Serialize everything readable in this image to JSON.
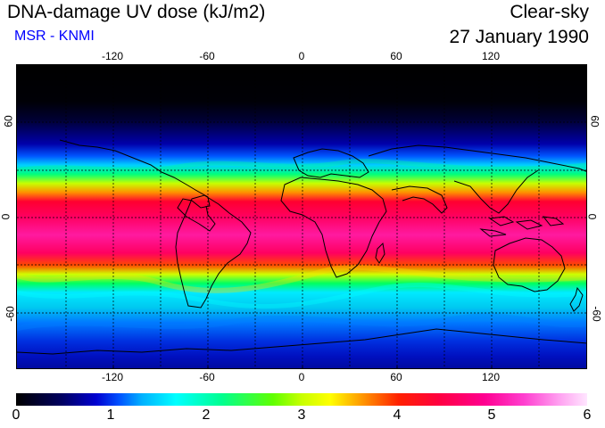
{
  "header": {
    "title": "DNA-damage UV dose (kJ/m2)",
    "subtitle": "MSR - KNMI",
    "condition": "Clear-sky",
    "date": "27 January 1990"
  },
  "axes": {
    "lon_ticks": [
      "-120",
      "-60",
      "0",
      "60",
      "120"
    ],
    "lat_ticks": [
      "60",
      "0",
      "-60"
    ]
  },
  "colorbar": {
    "labels": [
      "0",
      "1",
      "2",
      "3",
      "4",
      "5",
      "6"
    ]
  },
  "colors": {
    "subtitle": "#0000ff"
  }
}
